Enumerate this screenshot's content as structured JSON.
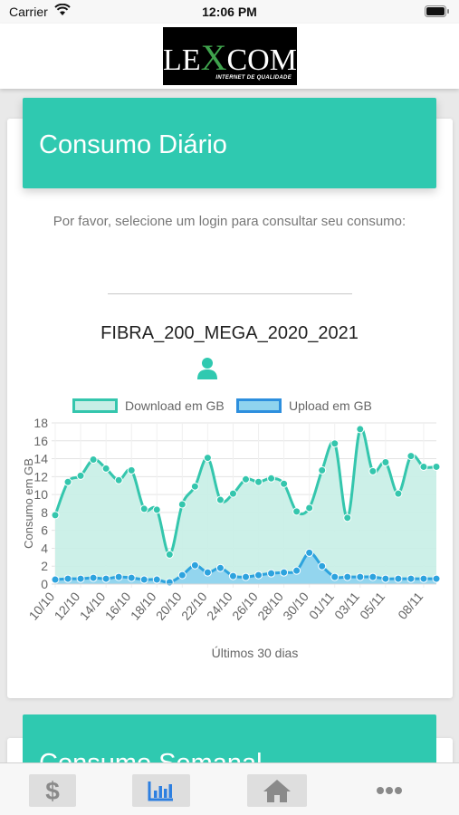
{
  "status_bar": {
    "carrier": "Carrier",
    "time": "12:06 PM"
  },
  "header": {
    "logo_word_left": "LE",
    "logo_word_x": "X",
    "logo_word_right": "COM",
    "logo_tagline": "INTERNET DE QUALIDADE"
  },
  "daily": {
    "title": "Consumo Diário",
    "prompt": "Por favor, selecione um login para consultar seu consumo:",
    "login_name": "FIBRA_200_MEGA_2020_2021",
    "user_icon": "user-icon"
  },
  "weekly": {
    "title": "Consumo Semanal"
  },
  "colors": {
    "accent": "#2fc9b0",
    "download_line": "#34c6ad",
    "download_fill": "#c7eee6",
    "upload_line": "#2da3de",
    "upload_fill": "#8fd3ee"
  },
  "tabs": [
    {
      "icon": "dollar-icon",
      "active": false
    },
    {
      "icon": "bar-chart-icon",
      "active": true
    },
    {
      "icon": "home-icon",
      "active": false
    },
    {
      "icon": "more-icon",
      "active": false
    }
  ],
  "chart_data": {
    "type": "area",
    "xlabel": "Últimos 30 dias",
    "ylabel": "Consumo em GB",
    "ylim": [
      0,
      18
    ],
    "yticks": [
      0,
      2,
      4,
      6,
      8,
      10,
      12,
      14,
      16,
      18
    ],
    "grid": true,
    "legend_position": "top",
    "x": [
      "10/10",
      "11/10",
      "12/10",
      "13/10",
      "14/10",
      "15/10",
      "16/10",
      "17/10",
      "18/10",
      "19/10",
      "20/10",
      "21/10",
      "22/10",
      "23/10",
      "24/10",
      "25/10",
      "26/10",
      "27/10",
      "28/10",
      "29/10",
      "30/10",
      "31/10",
      "01/11",
      "02/11",
      "03/11",
      "04/11",
      "05/11",
      "06/11",
      "07/11",
      "08/11",
      "09/11"
    ],
    "xticks": [
      "10/10",
      "12/10",
      "14/10",
      "16/10",
      "18/10",
      "20/10",
      "22/10",
      "24/10",
      "26/10",
      "28/10",
      "30/10",
      "01/11",
      "03/11",
      "05/11",
      "08/11"
    ],
    "series": [
      {
        "name": "Download em GB",
        "values": [
          7.7,
          11.4,
          12.1,
          13.9,
          12.9,
          11.6,
          12.7,
          8.4,
          8.3,
          3.3,
          8.9,
          10.9,
          14.1,
          9.4,
          10.1,
          11.7,
          11.4,
          11.8,
          11.2,
          8.1,
          8.5,
          12.7,
          15.7,
          7.4,
          17.3,
          12.6,
          13.6,
          10.1,
          14.3,
          13.1,
          13.1
        ]
      },
      {
        "name": "Upload em GB",
        "values": [
          0.5,
          0.6,
          0.6,
          0.7,
          0.6,
          0.8,
          0.7,
          0.5,
          0.5,
          0.2,
          1.0,
          2.1,
          1.3,
          1.8,
          0.9,
          0.8,
          1.0,
          1.2,
          1.3,
          1.5,
          3.5,
          2.0,
          0.8,
          0.8,
          0.8,
          0.8,
          0.6,
          0.6,
          0.6,
          0.6,
          0.6
        ]
      }
    ]
  }
}
